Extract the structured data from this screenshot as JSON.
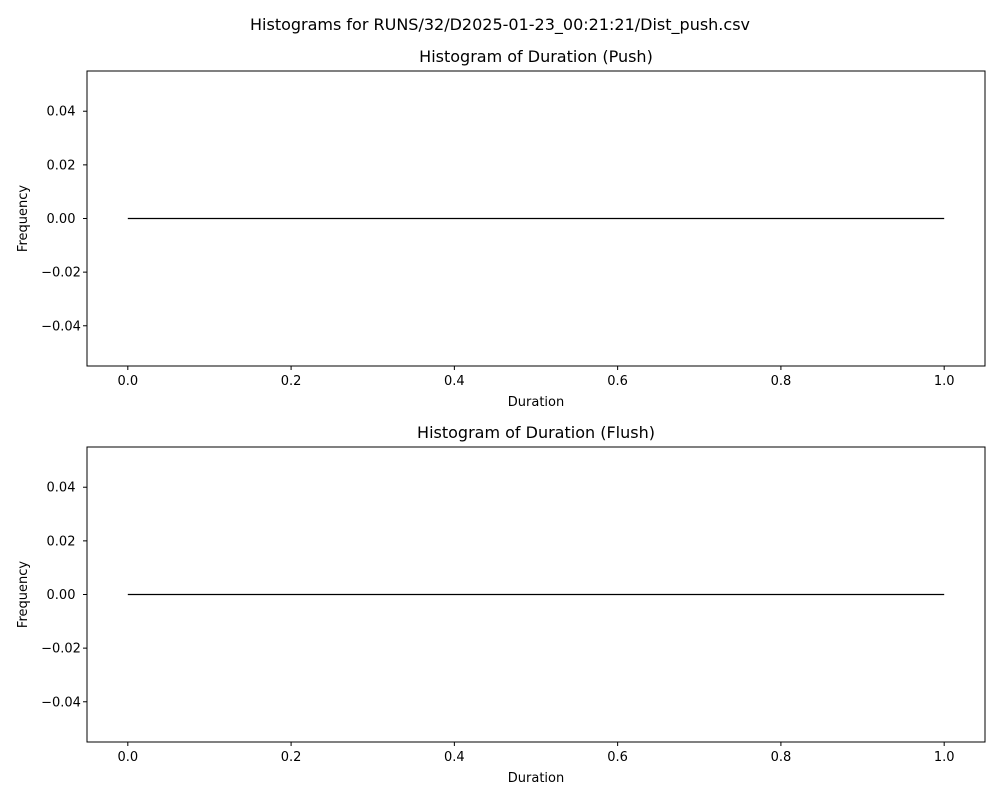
{
  "figure": {
    "suptitle": "Histograms for RUNS/32/D2025-01-23_00:21:21/Dist_push.csv"
  },
  "chart_data": [
    {
      "type": "bar",
      "title": "Histogram of Duration (Push)",
      "xlabel": "Duration",
      "ylabel": "Frequency",
      "xlim": [
        -0.05,
        1.05
      ],
      "ylim": [
        -0.055,
        0.055
      ],
      "xticks": [
        0.0,
        0.2,
        0.4,
        0.6,
        0.8,
        1.0
      ],
      "xtick_labels": [
        "0.0",
        "0.2",
        "0.4",
        "0.6",
        "0.8",
        "1.0"
      ],
      "yticks": [
        -0.04,
        -0.02,
        0.0,
        0.02,
        0.04
      ],
      "ytick_labels": [
        "−0.04",
        "−0.02",
        "0.00",
        "0.02",
        "0.04"
      ],
      "series": [
        {
          "x": [
            0.0,
            1.0
          ],
          "values": [
            0.0,
            0.0
          ]
        }
      ],
      "grid": false,
      "line_color": "#000000"
    },
    {
      "type": "bar",
      "title": "Histogram of Duration (Flush)",
      "xlabel": "Duration",
      "ylabel": "Frequency",
      "xlim": [
        -0.05,
        1.05
      ],
      "ylim": [
        -0.055,
        0.055
      ],
      "xticks": [
        0.0,
        0.2,
        0.4,
        0.6,
        0.8,
        1.0
      ],
      "xtick_labels": [
        "0.0",
        "0.2",
        "0.4",
        "0.6",
        "0.8",
        "1.0"
      ],
      "yticks": [
        -0.04,
        -0.02,
        0.0,
        0.02,
        0.04
      ],
      "ytick_labels": [
        "−0.04",
        "−0.02",
        "0.00",
        "0.02",
        "0.04"
      ],
      "series": [
        {
          "x": [
            0.0,
            1.0
          ],
          "values": [
            0.0,
            0.0
          ]
        }
      ],
      "grid": false,
      "line_color": "#000000"
    }
  ]
}
